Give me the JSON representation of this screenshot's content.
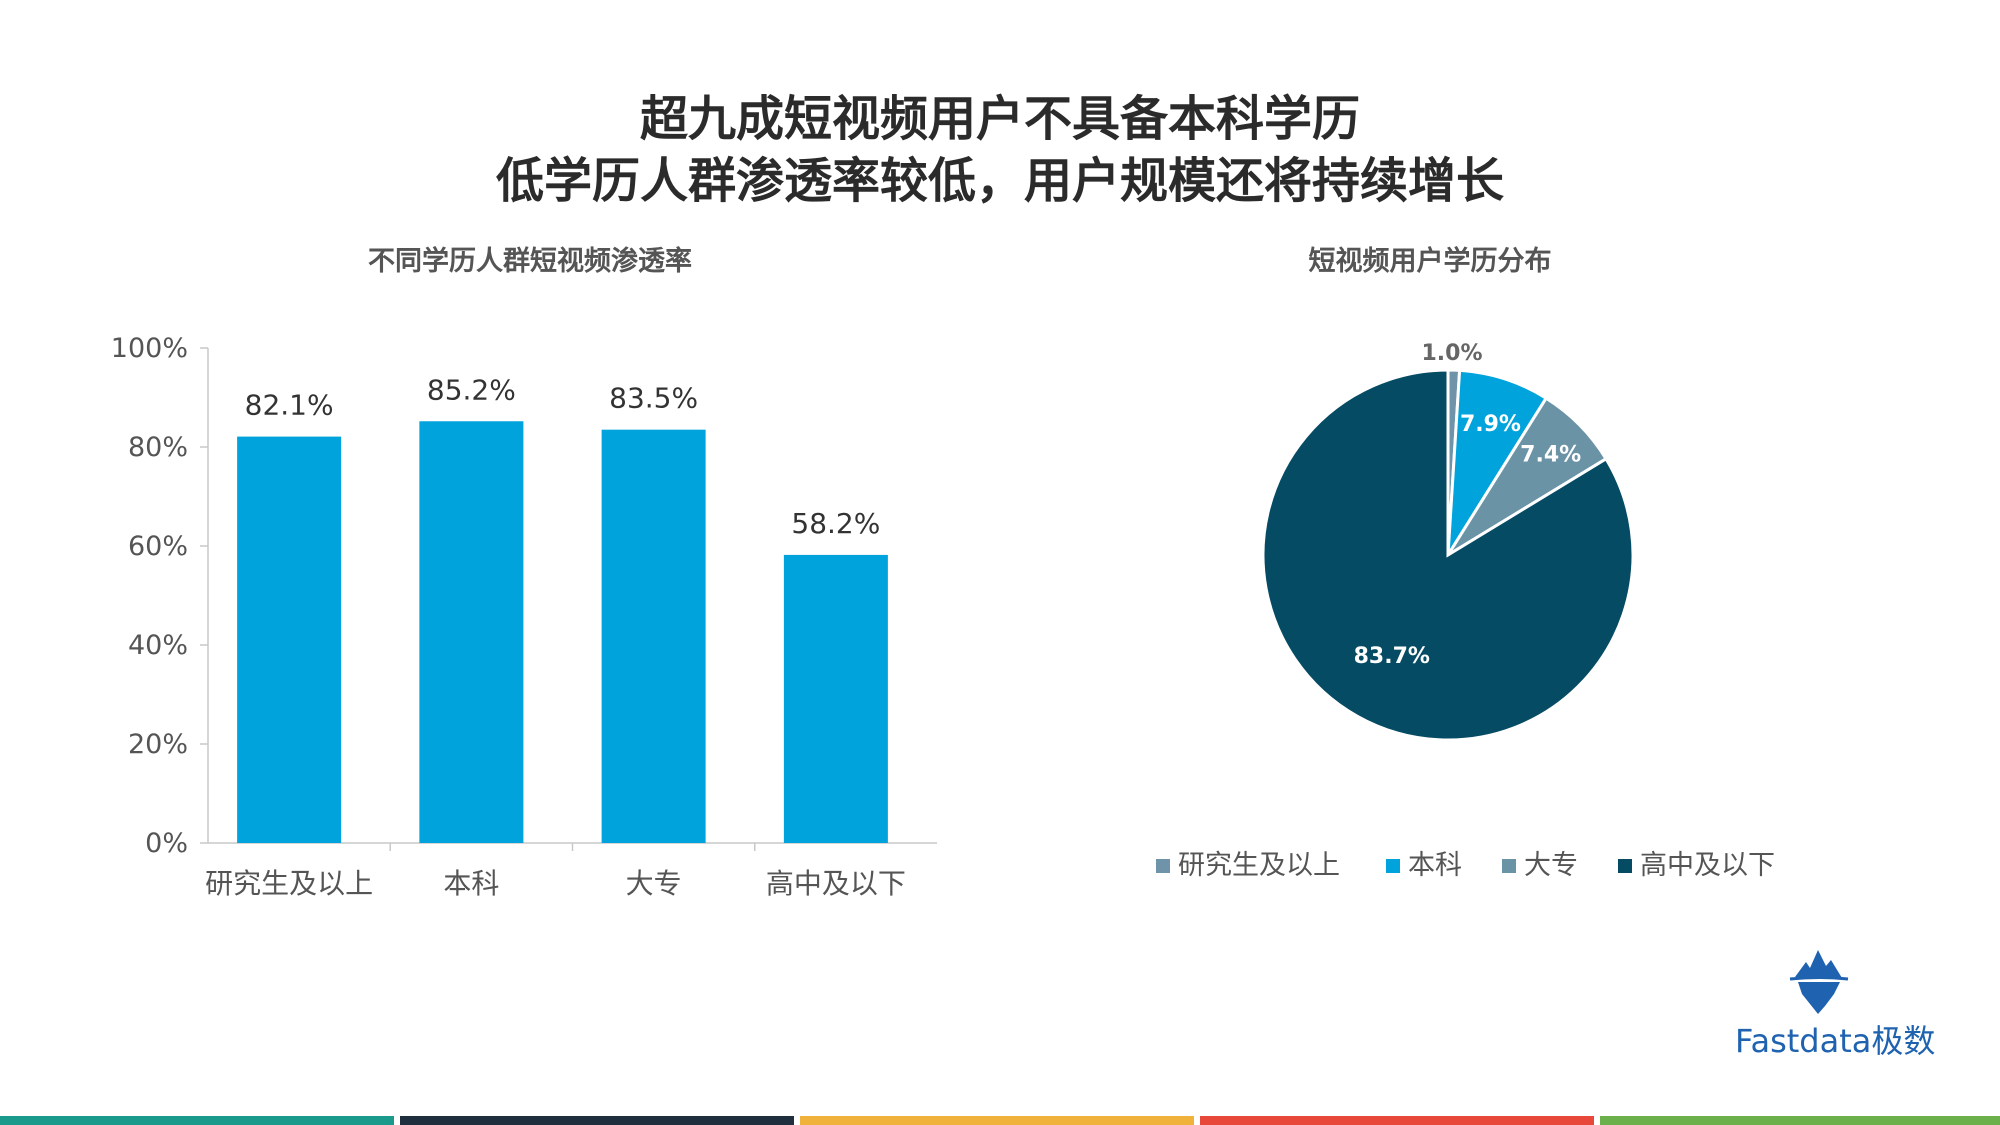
{
  "title": {
    "line1": "超九成短视频用户不具备本科学历",
    "line2": "低学历人群渗透率较低，用户规模还将持续增长"
  },
  "chart_data": [
    {
      "type": "bar",
      "title": "不同学历人群短视频渗透率",
      "categories": [
        "研究生及以上",
        "本科",
        "大专",
        "高中及以下"
      ],
      "values": [
        82.1,
        85.2,
        83.5,
        58.2
      ],
      "value_labels": [
        "82.1%",
        "85.2%",
        "83.5%",
        "58.2%"
      ],
      "ylim": [
        0,
        100
      ],
      "yticks": [
        "0%",
        "20%",
        "40%",
        "60%",
        "80%",
        "100%"
      ],
      "xlabel": "",
      "ylabel": "",
      "color": "#00a3dc",
      "grid": false
    },
    {
      "type": "pie",
      "title": "短视频用户学历分布",
      "labels": [
        "研究生及以上",
        "本科",
        "大专",
        "高中及以下"
      ],
      "values": [
        1.0,
        7.9,
        7.4,
        83.7
      ],
      "value_labels": [
        "1.0%",
        "7.9%",
        "7.4%",
        "83.7%"
      ],
      "colors": [
        "#6f93a8",
        "#00a3dc",
        "#6a93a6",
        "#054b63"
      ],
      "legend": "bottom"
    }
  ],
  "logo": {
    "text": "Fastdata极数",
    "icon": "iceberg-icon",
    "color": "#1e62b0"
  },
  "footer_colors": [
    "#1a9a8a",
    "#1f2f3d",
    "#f0b23a",
    "#e8483a",
    "#6bb04a"
  ]
}
